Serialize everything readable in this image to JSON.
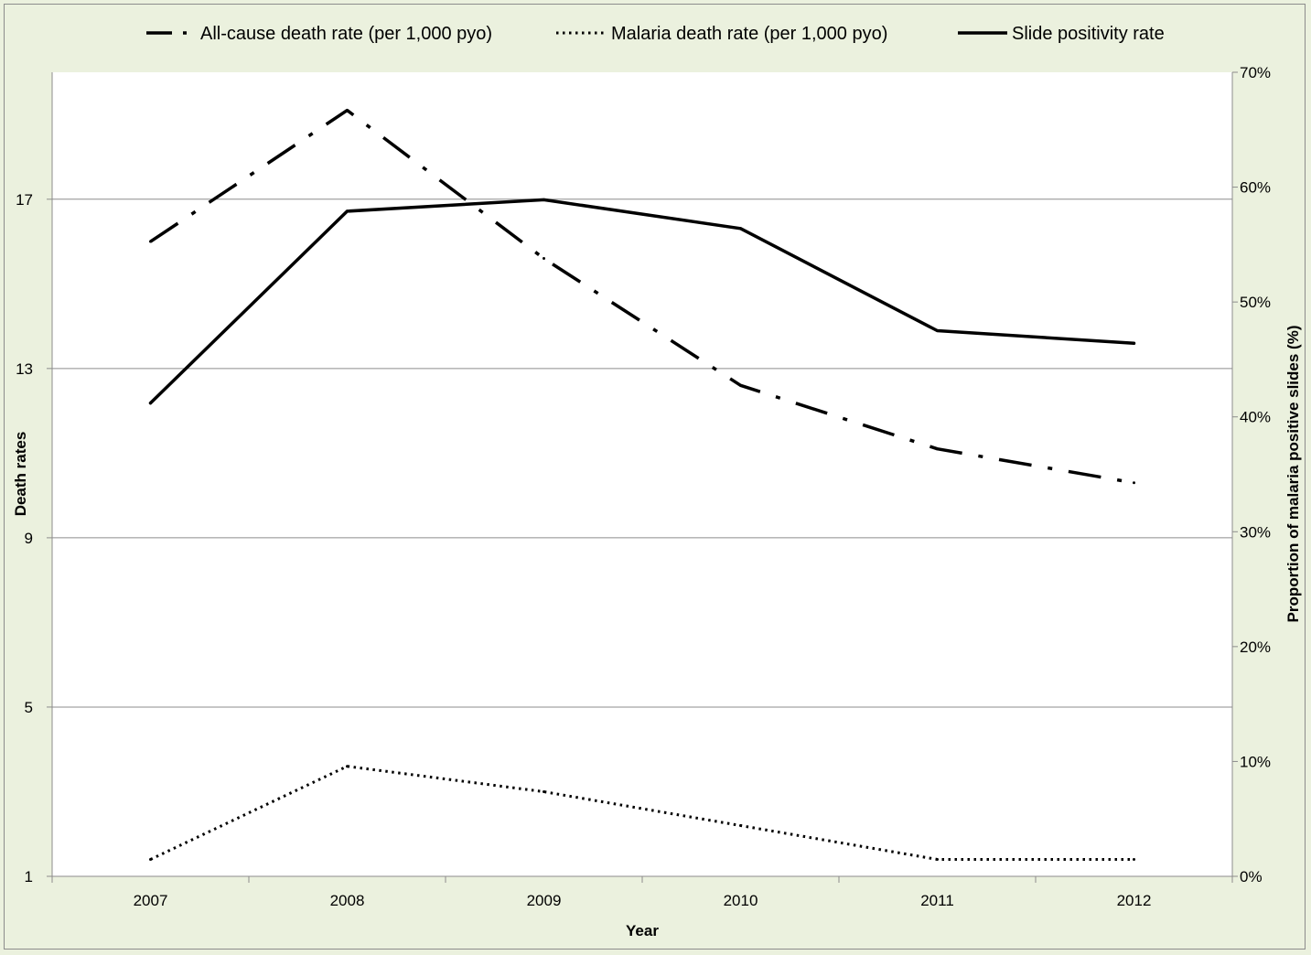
{
  "chart_data": {
    "type": "line",
    "categories": [
      "2007",
      "2008",
      "2009",
      "2010",
      "2011",
      "2012"
    ],
    "xlabel": "Year",
    "ylabel": "Death rates",
    "ylabel_right": "Proportion of malaria positive slides (%)",
    "ylim": [
      1,
      20
    ],
    "yticks": [
      1,
      5,
      9,
      13,
      17
    ],
    "ylim_right": [
      0,
      70
    ],
    "yticks_right_labels": [
      "0%",
      "10%",
      "20%",
      "30%",
      "40%",
      "50%",
      "60%",
      "70%"
    ],
    "grid": true,
    "legend_position": "top",
    "series": [
      {
        "name": "All-cause death rate (per 1,000 pyo)",
        "axis": "left",
        "style": "dashdot",
        "values": [
          16.0,
          19.1,
          15.6,
          12.6,
          11.1,
          10.3
        ]
      },
      {
        "name": "Malaria death rate  (per 1,000 pyo)",
        "axis": "left",
        "style": "dotted",
        "values": [
          1.4,
          3.6,
          3.0,
          2.2,
          1.4,
          1.4
        ]
      },
      {
        "name": "Slide positivity rate",
        "axis": "right",
        "style": "solid",
        "values": [
          41.2,
          57.9,
          58.9,
          56.4,
          47.5,
          46.4
        ]
      }
    ]
  }
}
